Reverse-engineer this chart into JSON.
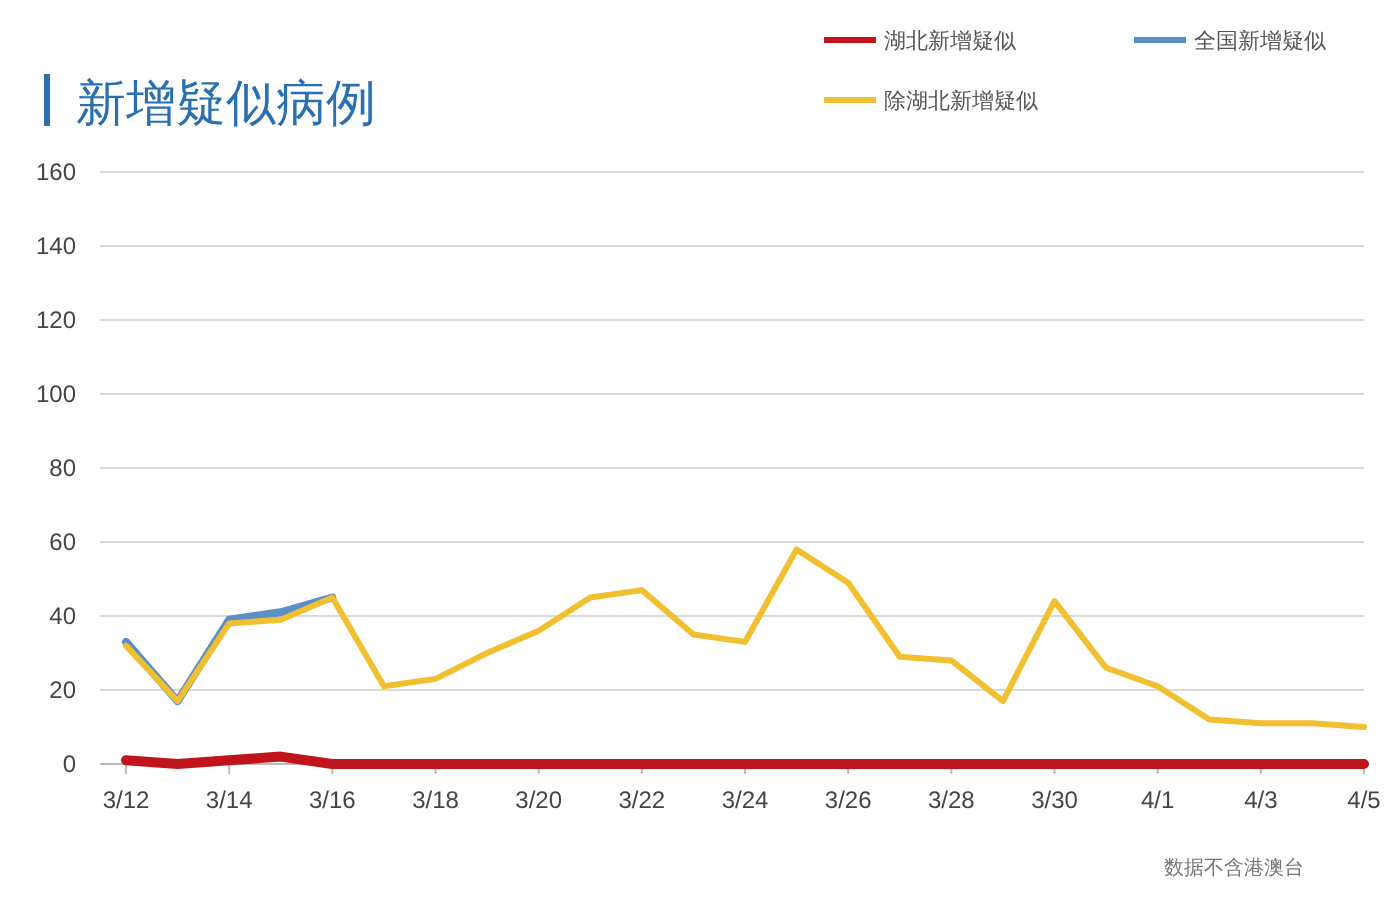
{
  "chart_data": {
    "type": "line",
    "title": "新增疑似病例",
    "categories": [
      "3/12",
      null,
      "3/14",
      null,
      "3/16",
      null,
      "3/18",
      null,
      "3/20",
      null,
      "3/22",
      null,
      "3/24",
      null,
      "3/26",
      null,
      "3/28",
      null,
      "3/30",
      null,
      "4/1",
      null,
      "4/3",
      null,
      "4/5"
    ],
    "series": [
      {
        "name": "湖北新增疑似",
        "color": "#c0141c",
        "values": [
          1,
          0,
          1,
          2,
          0,
          0,
          0,
          0,
          0,
          0,
          0,
          0,
          0,
          0,
          0,
          0,
          0,
          0,
          0,
          0,
          0,
          0,
          0,
          0,
          0
        ]
      },
      {
        "name": "全国新增疑似",
        "color": "#5b8fc7",
        "values": [
          33,
          17,
          39,
          41,
          45,
          null,
          null,
          null,
          null,
          null,
          null,
          null,
          null,
          null,
          null,
          null,
          null,
          null,
          null,
          null,
          null,
          null,
          null,
          null,
          null
        ]
      },
      {
        "name": "除湖北新增疑似",
        "color": "#f0c030",
        "values": [
          32,
          17,
          38,
          39,
          45,
          21,
          23,
          30,
          36,
          45,
          47,
          35,
          33,
          58,
          49,
          29,
          28,
          17,
          44,
          26,
          21,
          12,
          11,
          11,
          10
        ]
      }
    ],
    "ylim": [
      0,
      160
    ],
    "yticks": [
      0,
      20,
      40,
      60,
      80,
      100,
      120,
      140,
      160
    ],
    "grid": "y",
    "legend": "top right",
    "marker": "none",
    "line_style": "solid",
    "annotations": [
      "数据不含港澳台"
    ]
  }
}
